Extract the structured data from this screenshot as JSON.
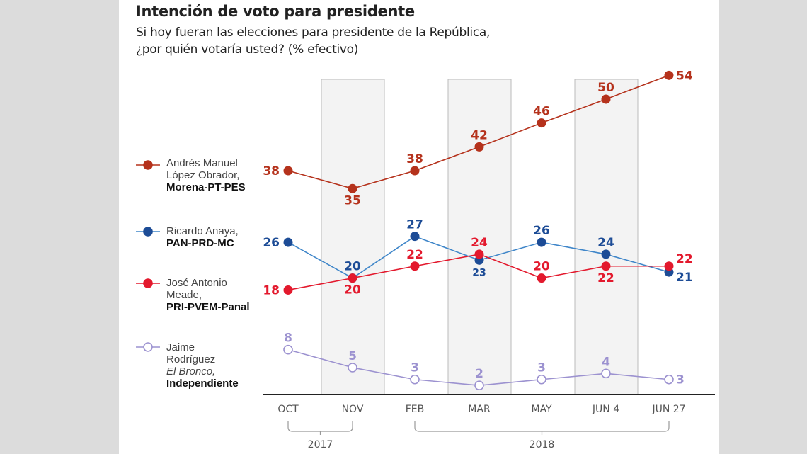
{
  "header": {
    "title": "Intención de voto para presidente",
    "subtitle_line1": "Si hoy fueran las elecciones para presidente de la República,",
    "subtitle_line2": "¿por quién votaría usted? (% efectivo)"
  },
  "legend": [
    {
      "line1": "Andrés Manuel",
      "line2": "López Obrador,",
      "party": "Morena-PT-PES"
    },
    {
      "line1": "Ricardo Anaya,",
      "party": "PAN-PRD-MC"
    },
    {
      "line1": "José Antonio",
      "line2": "Meade,",
      "party": "PRI-PVEM-Panal"
    },
    {
      "line1": "Jaime",
      "line2": "Rodríguez",
      "italic": "El Bronco,",
      "party": "Independiente"
    }
  ],
  "chart_data": {
    "type": "line",
    "title": "Intención de voto para presidente",
    "categories": [
      "OCT",
      "NOV",
      "FEB",
      "MAR",
      "MAY",
      "JUN 4",
      "JUN 27"
    ],
    "year_groups": [
      {
        "label": "2017",
        "from": "OCT",
        "to": "NOV"
      },
      {
        "label": "2018",
        "from": "FEB",
        "to": "JUN 27"
      }
    ],
    "shaded_categories": [
      "NOV",
      "MAR",
      "JUN 4"
    ],
    "ylim": [
      0,
      54
    ],
    "grid": false,
    "legend_placement": "left",
    "series": [
      {
        "name": "Andrés Manuel López Obrador, Morena-PT-PES",
        "color": "#b5321c",
        "label_color": "#b5321c",
        "marker": "filled",
        "values": [
          38,
          35,
          38,
          42,
          46,
          50,
          54
        ]
      },
      {
        "name": "Ricardo Anaya, PAN-PRD-MC",
        "color": "#3f86c9",
        "label_color": "#1d4c96",
        "marker": "filled",
        "marker_color": "#1d4c96",
        "values": [
          26,
          20,
          27,
          23,
          26,
          24,
          21
        ]
      },
      {
        "name": "José Antonio Meade, PRI-PVEM-Panal",
        "color": "#e3192d",
        "label_color": "#e3192d",
        "marker": "filled",
        "values": [
          18,
          20,
          22,
          24,
          20,
          22,
          22
        ]
      },
      {
        "name": "Jaime Rodríguez El Bronco, Independiente",
        "color": "#9c92d0",
        "label_color": "#9c92d0",
        "marker": "hollow",
        "values": [
          8,
          5,
          3,
          2,
          3,
          4,
          3
        ]
      }
    ]
  }
}
